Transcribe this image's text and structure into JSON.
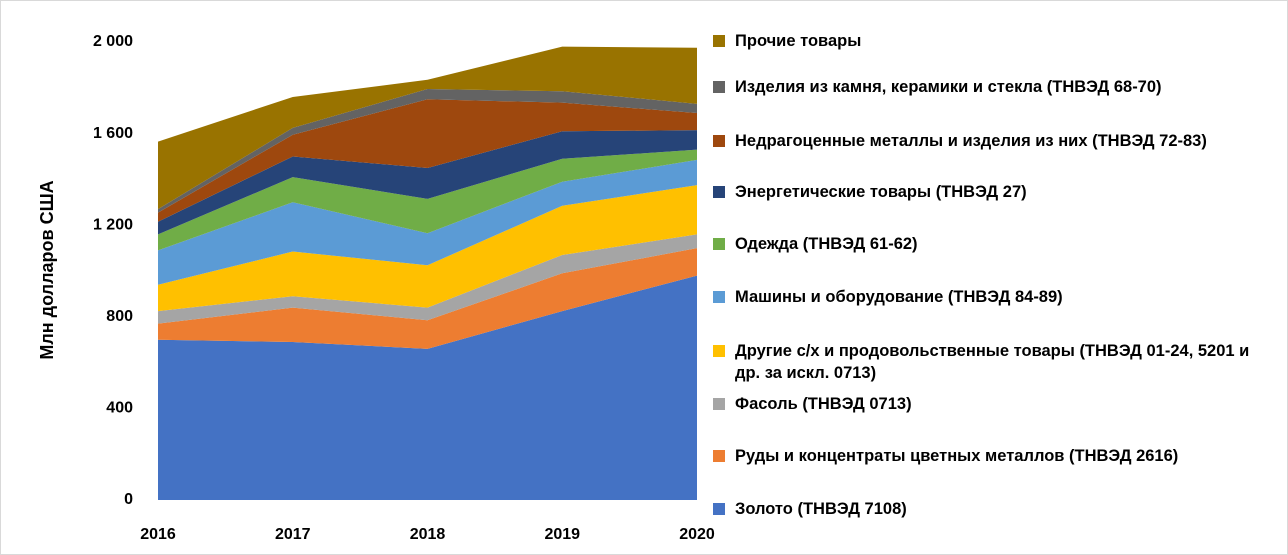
{
  "chart_data": {
    "type": "area",
    "stacked": true,
    "y_label": "Млн долларов США",
    "categories": [
      "2016",
      "2017",
      "2018",
      "2019",
      "2020"
    ],
    "ylim": [
      0,
      2000
    ],
    "yticks": [
      0,
      400,
      800,
      {
        "value": 1200,
        "label": "1 200"
      },
      {
        "value": 1600,
        "label": "1 600"
      },
      {
        "value": 2000,
        "label": "2 000"
      }
    ],
    "grid": false,
    "legend": "right",
    "series": [
      {
        "name": "Золото (ТНВЭД 7108)",
        "color": "#4472c4",
        "values": [
          700,
          690,
          660,
          825,
          980
        ]
      },
      {
        "name": "Руды и концентраты цветных металлов (ТНВЭД 2616)",
        "color": "#ed7d31",
        "values": [
          70,
          150,
          125,
          165,
          120
        ]
      },
      {
        "name": "Фасоль (ТНВЭД 0713)",
        "color": "#a5a5a5",
        "values": [
          55,
          50,
          55,
          80,
          60
        ]
      },
      {
        "name": "Другие с/х и продовольственные товары (ТНВЭД 01-24, 5201 и др. за искл. 0713)",
        "color": "#ffc000",
        "values": [
          115,
          195,
          185,
          215,
          215
        ]
      },
      {
        "name": "Машины и оборудование (ТНВЭД 84-89)",
        "color": "#5b9bd5",
        "values": [
          150,
          215,
          140,
          105,
          110
        ]
      },
      {
        "name": "Одежда (ТНВЭД 61-62)",
        "color": "#70ad47",
        "values": [
          70,
          110,
          150,
          100,
          45
        ]
      },
      {
        "name": "Энергетические товары (ТНВЭД 27)",
        "color": "#264478",
        "values": [
          55,
          90,
          135,
          120,
          85
        ]
      },
      {
        "name": "Недрагоценные металлы и изделия из них (ТНВЭД 72-83)",
        "color": "#9e480e",
        "values": [
          40,
          95,
          300,
          125,
          75
        ]
      },
      {
        "name": "Изделия из камня, керамики и стекла (ТНВЭД 68-70)",
        "color": "#636363",
        "values": [
          15,
          30,
          45,
          50,
          40
        ]
      },
      {
        "name": "Прочие товары",
        "color": "#997300",
        "values": [
          295,
          135,
          40,
          195,
          245
        ]
      }
    ]
  }
}
